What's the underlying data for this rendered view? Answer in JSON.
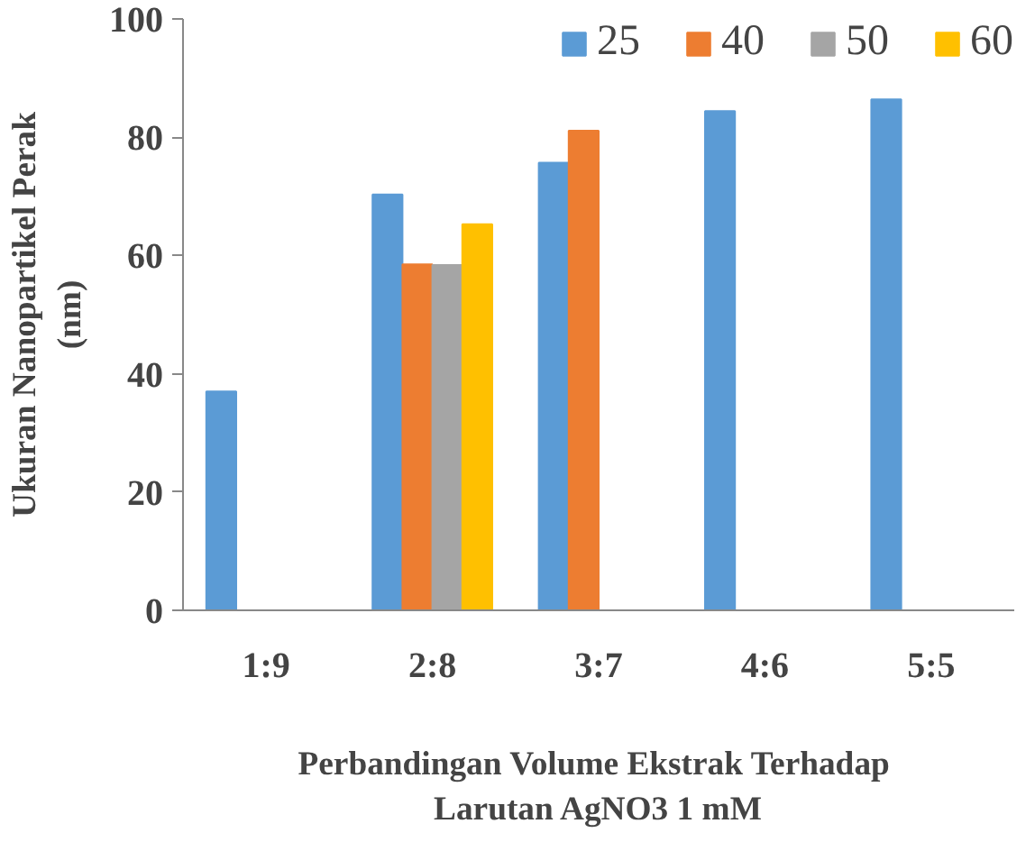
{
  "chart_data": {
    "type": "bar",
    "categories": [
      "1:9",
      "2:8",
      "3:7",
      "4:6",
      "5:5"
    ],
    "series": [
      {
        "name": "25",
        "color": "#5b9bd5",
        "values": [
          37.0,
          70.3,
          75.7,
          84.4,
          86.4
        ]
      },
      {
        "name": "40",
        "color": "#ed7d31",
        "values": [
          null,
          58.5,
          81.1,
          null,
          null
        ]
      },
      {
        "name": "50",
        "color": "#a5a5a5",
        "values": [
          null,
          58.4,
          null,
          null,
          null
        ]
      },
      {
        "name": "60",
        "color": "#ffc000",
        "values": [
          null,
          65.3,
          null,
          null,
          null
        ]
      }
    ],
    "ylim": [
      0,
      100
    ],
    "yticks": [
      0,
      20,
      40,
      60,
      80,
      100
    ],
    "grid": false,
    "legend": "top right",
    "xlabel": "Perbandingan Volume Ekstrak  Terhadap Larutan AgNO3 1 mM",
    "ylabel": "Ukuran Nanopartikel Perak (nm)"
  }
}
